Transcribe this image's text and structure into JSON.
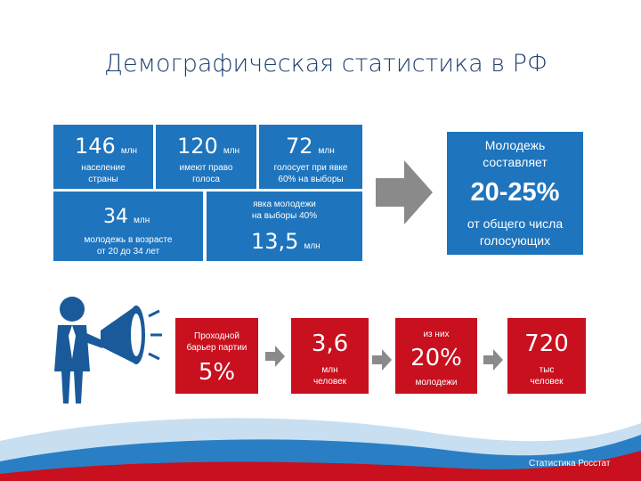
{
  "title": "Демографическая статистика в РФ",
  "boxes": {
    "b1": {
      "value": "146",
      "unit": "млн",
      "line1": "население",
      "line2": "страны"
    },
    "b2": {
      "value": "120",
      "unit": "млн",
      "line1": "имеют право",
      "line2": "голоса"
    },
    "b3": {
      "value": "72",
      "unit": "млн",
      "line1": "голосует при явке",
      "line2": "60% на выборы"
    },
    "b4": {
      "value": "34",
      "unit": "млн",
      "line1": "молодежь в возрасте",
      "line2": "от 20 до 34 лет"
    },
    "b5": {
      "line1": "явка молодежи",
      "line2": "на выборы 40%",
      "value": "13,5",
      "unit": "млн"
    },
    "b6": {
      "line1": "Молодежь",
      "line2": "составляет",
      "value": "20-25%",
      "line3": "от общего числа",
      "line4": "голосующих"
    }
  },
  "red": {
    "r1": {
      "line1": "Проходной",
      "line2": "барьер партии",
      "value": "5%"
    },
    "r2": {
      "value": "3,6",
      "line1": "млн",
      "line2": "человек"
    },
    "r3": {
      "top": "из них",
      "value": "20%",
      "bottom": "молодежи"
    },
    "r4": {
      "value": "720",
      "line1": "тыс",
      "line2": "человек"
    }
  },
  "footer": "Статистика Росстат",
  "colors": {
    "blue": "#1e74bd",
    "red": "#c8101e",
    "title": "#1f3f6e"
  }
}
